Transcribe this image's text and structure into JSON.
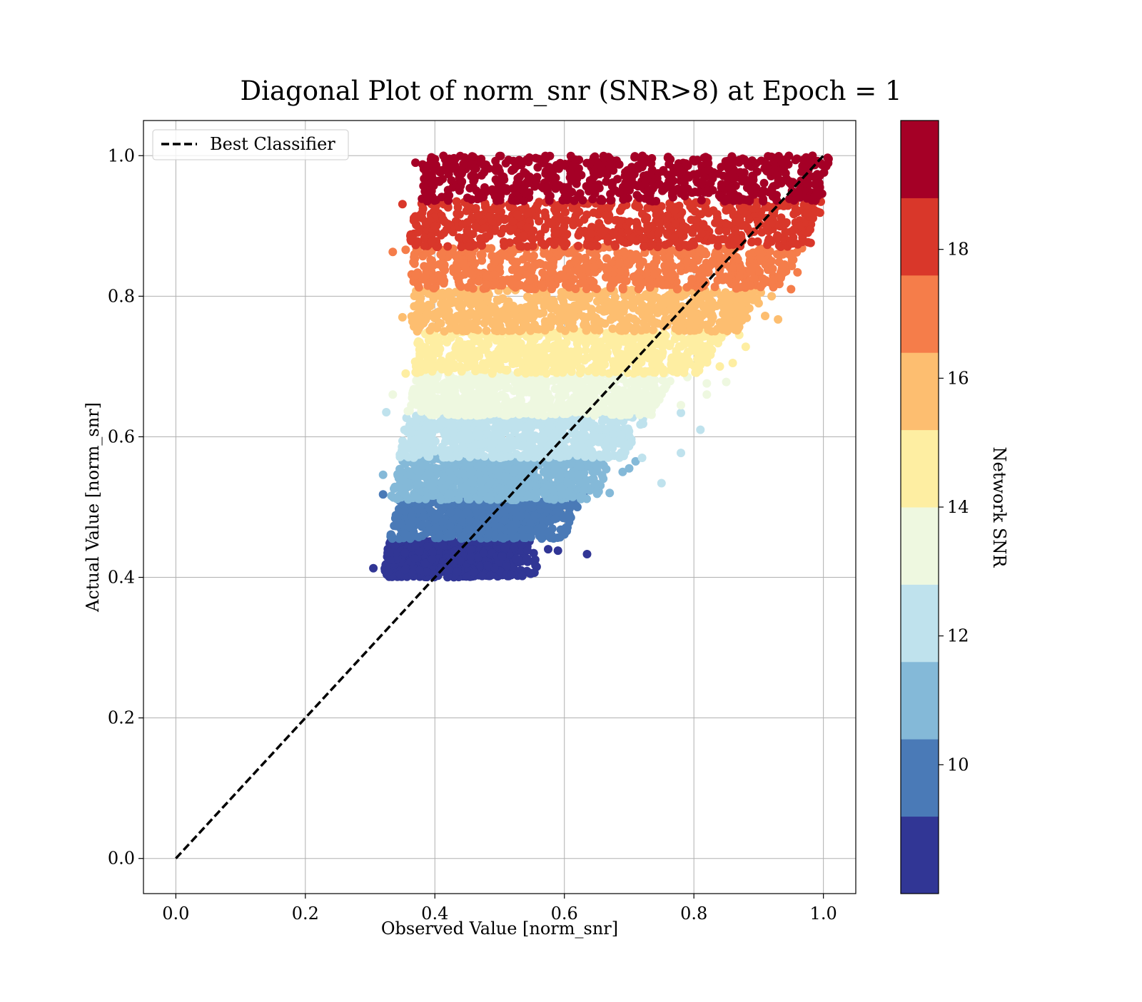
{
  "chart_data": {
    "type": "scatter",
    "title": "Diagonal Plot of norm_snr (SNR>8) at Epoch = 1",
    "xlabel": "Observed Value [norm_snr]",
    "ylabel": "Actual Value [norm_snr]",
    "xlim": [
      -0.05,
      1.05
    ],
    "ylim": [
      -0.05,
      1.05
    ],
    "x_ticks": [
      0.0,
      0.2,
      0.4,
      0.6,
      0.8,
      1.0
    ],
    "y_ticks": [
      0.0,
      0.2,
      0.4,
      0.6,
      0.8,
      1.0
    ],
    "x_tick_labels": [
      "0.0",
      "0.2",
      "0.4",
      "0.6",
      "0.8",
      "1.0"
    ],
    "y_tick_labels": [
      "0.0",
      "0.2",
      "0.4",
      "0.6",
      "0.8",
      "1.0"
    ],
    "grid": true,
    "legend": {
      "placement": "upper-left",
      "entries": [
        "Best Classifier"
      ]
    },
    "reference_line": {
      "label": "Best Classifier",
      "style": "dashed",
      "color": "#000000",
      "x": [
        0.0,
        1.0
      ],
      "y": [
        0.0,
        1.0
      ]
    },
    "colorbar": {
      "label": "Network SNR",
      "colormap": "RdYlBu_r",
      "range": [
        8,
        20
      ],
      "ticks": [
        10,
        12,
        14,
        16,
        18
      ],
      "tick_labels": [
        "10",
        "12",
        "14",
        "16",
        "18"
      ],
      "bands": [
        {
          "snr_low": 8,
          "snr_high": 9.2,
          "color": "#313695"
        },
        {
          "snr_low": 9.2,
          "snr_high": 10.4,
          "color": "#4a7ab7"
        },
        {
          "snr_low": 10.4,
          "snr_high": 11.6,
          "color": "#84b9d8"
        },
        {
          "snr_low": 11.6,
          "snr_high": 12.8,
          "color": "#bfe2ed"
        },
        {
          "snr_low": 12.8,
          "snr_high": 14.0,
          "color": "#eef8e0"
        },
        {
          "snr_low": 14.0,
          "snr_high": 15.2,
          "color": "#feeea2"
        },
        {
          "snr_low": 15.2,
          "snr_high": 16.4,
          "color": "#fdbe70"
        },
        {
          "snr_low": 16.4,
          "snr_high": 17.6,
          "color": "#f57d4a"
        },
        {
          "snr_low": 17.6,
          "snr_high": 18.8,
          "color": "#d9372a"
        },
        {
          "snr_low": 18.8,
          "snr_high": 20,
          "color": "#a50026"
        }
      ]
    },
    "series": [
      {
        "band": 0,
        "y_range": [
          0.4,
          0.455
        ],
        "x_left": [
          0.32,
          0.33
        ],
        "x_right": [
          0.53,
          0.52
        ],
        "outliers": [
          [
            0.305,
            0.413
          ],
          [
            0.535,
            0.402
          ],
          [
            0.575,
            0.44
          ],
          [
            0.59,
            0.438
          ],
          [
            0.635,
            0.433
          ],
          [
            0.555,
            0.425
          ]
        ]
      },
      {
        "band": 1,
        "y_range": [
          0.455,
          0.51
        ],
        "x_left": [
          0.33,
          0.345
        ],
        "x_right": [
          0.57,
          0.59
        ],
        "outliers": [
          [
            0.32,
            0.518
          ],
          [
            0.61,
            0.485
          ],
          [
            0.62,
            0.5
          ],
          [
            0.63,
            0.52
          ],
          [
            0.58,
            0.46
          ],
          [
            0.565,
            0.455
          ]
        ]
      },
      {
        "band": 2,
        "y_range": [
          0.51,
          0.57
        ],
        "x_left": [
          0.33,
          0.35
        ],
        "x_right": [
          0.62,
          0.64
        ],
        "outliers": [
          [
            0.32,
            0.546
          ],
          [
            0.67,
            0.52
          ],
          [
            0.65,
            0.533
          ],
          [
            0.69,
            0.55
          ],
          [
            0.7,
            0.555
          ],
          [
            0.71,
            0.565
          ]
        ]
      },
      {
        "band": 3,
        "y_range": [
          0.57,
          0.63
        ],
        "x_left": [
          0.345,
          0.355
        ],
        "x_right": [
          0.66,
          0.7
        ],
        "outliers": [
          [
            0.325,
            0.635
          ],
          [
            0.78,
            0.577
          ],
          [
            0.75,
            0.534
          ],
          [
            0.81,
            0.61
          ],
          [
            0.72,
            0.57
          ],
          [
            0.78,
            0.634
          ]
        ]
      },
      {
        "band": 4,
        "y_range": [
          0.63,
          0.69
        ],
        "x_left": [
          0.355,
          0.37
        ],
        "x_right": [
          0.71,
          0.74
        ],
        "outliers": [
          [
            0.335,
            0.66
          ],
          [
            0.82,
            0.66
          ],
          [
            0.85,
            0.678
          ],
          [
            0.82,
            0.676
          ],
          [
            0.78,
            0.645
          ],
          [
            0.79,
            0.685
          ]
        ]
      },
      {
        "band": 5,
        "y_range": [
          0.69,
          0.75
        ],
        "x_left": [
          0.365,
          0.375
        ],
        "x_right": [
          0.78,
          0.82
        ],
        "outliers": [
          [
            0.355,
            0.69
          ],
          [
            0.88,
            0.728
          ],
          [
            0.86,
            0.705
          ],
          [
            0.87,
            0.745
          ],
          [
            0.84,
            0.7
          ],
          [
            0.82,
            0.71
          ]
        ]
      },
      {
        "band": 6,
        "y_range": [
          0.75,
          0.81
        ],
        "x_left": [
          0.36,
          0.37
        ],
        "x_right": [
          0.84,
          0.88
        ],
        "outliers": [
          [
            0.35,
            0.77
          ],
          [
            0.93,
            0.767
          ],
          [
            0.91,
            0.772
          ],
          [
            0.9,
            0.79
          ],
          [
            0.92,
            0.8
          ],
          [
            0.885,
            0.805
          ]
        ]
      },
      {
        "band": 7,
        "y_range": [
          0.81,
          0.87
        ],
        "x_left": [
          0.36,
          0.37
        ],
        "x_right": [
          0.9,
          0.94
        ],
        "outliers": [
          [
            0.335,
            0.863
          ],
          [
            0.355,
            0.866
          ],
          [
            0.95,
            0.81
          ],
          [
            0.96,
            0.834
          ],
          [
            0.94,
            0.845
          ],
          [
            0.92,
            0.85
          ]
        ]
      },
      {
        "band": 8,
        "y_range": [
          0.87,
          0.935
        ],
        "x_left": [
          0.36,
          0.365
        ],
        "x_right": [
          0.95,
          0.97
        ],
        "outliers": [
          [
            0.35,
            0.931
          ],
          [
            0.97,
            0.905
          ],
          [
            0.975,
            0.93
          ],
          [
            0.965,
            0.9
          ],
          [
            0.975,
            0.918
          ]
        ]
      },
      {
        "band": 9,
        "y_range": [
          0.935,
          1.0
        ],
        "x_left": [
          0.375,
          0.38
        ],
        "x_right": [
          0.97,
          0.98
        ],
        "outliers": [
          [
            0.37,
            0.99
          ],
          [
            0.985,
            0.97
          ],
          [
            0.98,
            0.985
          ],
          [
            0.99,
            0.95
          ]
        ]
      }
    ]
  }
}
